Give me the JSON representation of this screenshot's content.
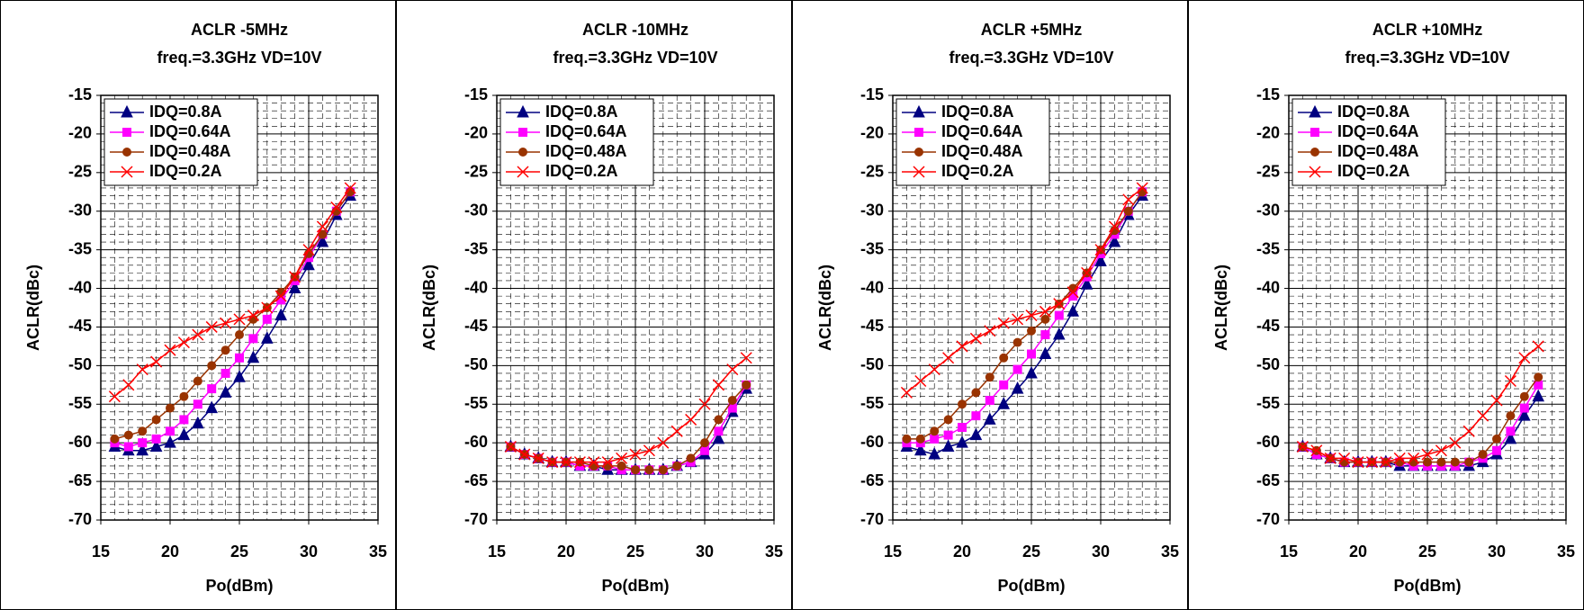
{
  "chart_data": [
    {
      "type": "line",
      "title": "ACLR -5MHz",
      "subtitle": "freq.=3.3GHz  VD=10V",
      "xlabel": "Po(dBm)",
      "ylabel": "ACLR(dBc)",
      "x": [
        16,
        17,
        18,
        19,
        20,
        21,
        22,
        23,
        24,
        25,
        26,
        27,
        28,
        29,
        30,
        31,
        32,
        33
      ],
      "xlim": [
        15,
        35
      ],
      "xticks": [
        15,
        20,
        25,
        30,
        35
      ],
      "ylim": [
        -70,
        -15
      ],
      "yticks": [
        -15,
        -20,
        -25,
        -30,
        -35,
        -40,
        -45,
        -50,
        -55,
        -60,
        -65,
        -70
      ],
      "grid": true,
      "minor_grid": true,
      "legend": "upper left",
      "series": [
        {
          "name": "IDQ=0.8A",
          "color": "#000080",
          "marker": "triangle",
          "values": [
            -60.5,
            -61,
            -61,
            -60.5,
            -60,
            -59,
            -57.5,
            -55.5,
            -53.5,
            -51.5,
            -49,
            -46.5,
            -43.5,
            -40,
            -37,
            -34,
            -30.5,
            -28
          ]
        },
        {
          "name": "IDQ=0.64A",
          "color": "#ff00ff",
          "marker": "square",
          "values": [
            -60,
            -60.5,
            -60,
            -59.5,
            -58.5,
            -57,
            -55,
            -53,
            -51,
            -49,
            -46.5,
            -44,
            -41.5,
            -39,
            -36,
            -33,
            -30,
            -27.5
          ]
        },
        {
          "name": "IDQ=0.48A",
          "color": "#993300",
          "marker": "circle",
          "values": [
            -59.5,
            -59,
            -58.5,
            -57,
            -55.5,
            -54,
            -52,
            -50,
            -48,
            -46,
            -44,
            -42.5,
            -40.5,
            -38.5,
            -35.5,
            -33,
            -30,
            -27.5
          ]
        },
        {
          "name": "IDQ=0.2A",
          "color": "#ff0000",
          "marker": "x",
          "values": [
            -54,
            -52.5,
            -50.5,
            -49.5,
            -48,
            -47,
            -46,
            -45,
            -44.5,
            -44,
            -43.5,
            -42.5,
            -41,
            -38.5,
            -35,
            -32,
            -29.5,
            -27
          ]
        }
      ]
    },
    {
      "type": "line",
      "title": "ACLR -10MHz",
      "subtitle": "freq.=3.3GHz  VD=10V",
      "xlabel": "Po(dBm)",
      "ylabel": "ACLR(dBc)",
      "x": [
        16,
        17,
        18,
        19,
        20,
        21,
        22,
        23,
        24,
        25,
        26,
        27,
        28,
        29,
        30,
        31,
        32,
        33
      ],
      "xlim": [
        15,
        35
      ],
      "xticks": [
        15,
        20,
        25,
        30,
        35
      ],
      "ylim": [
        -70,
        -15
      ],
      "yticks": [
        -15,
        -20,
        -25,
        -30,
        -35,
        -40,
        -45,
        -50,
        -55,
        -60,
        -65,
        -70
      ],
      "grid": true,
      "minor_grid": true,
      "legend": "upper left",
      "series": [
        {
          "name": "IDQ=0.8A",
          "color": "#000080",
          "marker": "triangle",
          "values": [
            -60.5,
            -61.5,
            -62,
            -62.5,
            -62.5,
            -63,
            -63,
            -63.5,
            -63.5,
            -63.5,
            -63.5,
            -63.5,
            -63,
            -62.5,
            -61.5,
            -59.5,
            -56,
            -53
          ]
        },
        {
          "name": "IDQ=0.64A",
          "color": "#ff00ff",
          "marker": "square",
          "values": [
            -60.5,
            -61.5,
            -62,
            -62.5,
            -62.5,
            -63,
            -63,
            -63,
            -63.5,
            -63.5,
            -63.5,
            -63.5,
            -63,
            -62.5,
            -61,
            -58.5,
            -55.5,
            -52.5
          ]
        },
        {
          "name": "IDQ=0.48A",
          "color": "#993300",
          "marker": "circle",
          "values": [
            -60.5,
            -61.5,
            -62,
            -62.5,
            -62.5,
            -62.5,
            -63,
            -63,
            -63,
            -63.5,
            -63.5,
            -63.5,
            -63,
            -62,
            -60,
            -57,
            -54.5,
            -52.5
          ]
        },
        {
          "name": "IDQ=0.2A",
          "color": "#ff0000",
          "marker": "x",
          "values": [
            -60.5,
            -61.5,
            -62,
            -62.5,
            -62.5,
            -62.5,
            -62.5,
            -62.5,
            -62,
            -61.5,
            -61,
            -60,
            -58.5,
            -57,
            -55,
            -52.5,
            -50.5,
            -49
          ]
        }
      ]
    },
    {
      "type": "line",
      "title": "ACLR +5MHz",
      "subtitle": "freq.=3.3GHz  VD=10V",
      "xlabel": "Po(dBm)",
      "ylabel": "ACLR(dBc)",
      "x": [
        16,
        17,
        18,
        19,
        20,
        21,
        22,
        23,
        24,
        25,
        26,
        27,
        28,
        29,
        30,
        31,
        32,
        33
      ],
      "xlim": [
        15,
        35
      ],
      "xticks": [
        15,
        20,
        25,
        30,
        35
      ],
      "ylim": [
        -70,
        -15
      ],
      "yticks": [
        -15,
        -20,
        -25,
        -30,
        -35,
        -40,
        -45,
        -50,
        -55,
        -60,
        -65,
        -70
      ],
      "grid": true,
      "minor_grid": true,
      "legend": "upper left",
      "series": [
        {
          "name": "IDQ=0.8A",
          "color": "#000080",
          "marker": "triangle",
          "values": [
            -60.5,
            -61,
            -61.5,
            -60.5,
            -60,
            -59,
            -57,
            -55,
            -53,
            -51,
            -48.5,
            -46,
            -43,
            -39.5,
            -36.5,
            -34,
            -30.5,
            -28
          ]
        },
        {
          "name": "IDQ=0.64A",
          "color": "#ff00ff",
          "marker": "square",
          "values": [
            -60,
            -60,
            -59.5,
            -59,
            -58,
            -56.5,
            -54.5,
            -52.5,
            -50.5,
            -48.5,
            -46,
            -43.5,
            -41,
            -38.5,
            -35.5,
            -33,
            -30,
            -27.5
          ]
        },
        {
          "name": "IDQ=0.48A",
          "color": "#993300",
          "marker": "circle",
          "values": [
            -59.5,
            -59.5,
            -58.5,
            -57,
            -55,
            -53.5,
            -51.5,
            -49,
            -47,
            -45.5,
            -44,
            -42,
            -40,
            -38,
            -35,
            -32.5,
            -30,
            -27.5
          ]
        },
        {
          "name": "IDQ=0.2A",
          "color": "#ff0000",
          "marker": "x",
          "values": [
            -53.5,
            -52,
            -50.5,
            -49,
            -47.5,
            -46.5,
            -45.5,
            -44.5,
            -44,
            -43.5,
            -43,
            -42,
            -40.5,
            -38,
            -35,
            -32,
            -28.5,
            -27
          ]
        }
      ]
    },
    {
      "type": "line",
      "title": "ACLR +10MHz",
      "subtitle": "freq.=3.3GHz  VD=10V",
      "xlabel": "Po(dBm)",
      "ylabel": "ACLR(dBc)",
      "x": [
        16,
        17,
        18,
        19,
        20,
        21,
        22,
        23,
        24,
        25,
        26,
        27,
        28,
        29,
        30,
        31,
        32,
        33
      ],
      "xlim": [
        15,
        35
      ],
      "xticks": [
        15,
        20,
        25,
        30,
        35
      ],
      "ylim": [
        -70,
        -15
      ],
      "yticks": [
        -15,
        -20,
        -25,
        -30,
        -35,
        -40,
        -45,
        -50,
        -55,
        -60,
        -65,
        -70
      ],
      "grid": true,
      "minor_grid": true,
      "legend": "upper left",
      "series": [
        {
          "name": "IDQ=0.8A",
          "color": "#000080",
          "marker": "triangle",
          "values": [
            -60.5,
            -61.5,
            -62,
            -62.5,
            -62.5,
            -62.5,
            -62.5,
            -63,
            -63,
            -63,
            -63,
            -63,
            -63,
            -62.5,
            -61.5,
            -59.5,
            -56.5,
            -54
          ]
        },
        {
          "name": "IDQ=0.64A",
          "color": "#ff00ff",
          "marker": "square",
          "values": [
            -60.5,
            -61.5,
            -62,
            -62.5,
            -62.5,
            -62.5,
            -62.5,
            -62.5,
            -63,
            -63,
            -63,
            -63,
            -62.5,
            -62,
            -61,
            -58.5,
            -55.5,
            -52.5
          ]
        },
        {
          "name": "IDQ=0.48A",
          "color": "#993300",
          "marker": "circle",
          "values": [
            -60.5,
            -61,
            -62,
            -62.5,
            -62.5,
            -62.5,
            -62.5,
            -62.5,
            -62.5,
            -62.5,
            -62.5,
            -62.5,
            -62.5,
            -61.5,
            -59.5,
            -56.5,
            -54,
            -51.5
          ]
        },
        {
          "name": "IDQ=0.2A",
          "color": "#ff0000",
          "marker": "x",
          "values": [
            -60.5,
            -61,
            -62,
            -62,
            -62.5,
            -62.5,
            -62.5,
            -62,
            -62,
            -61.5,
            -61,
            -60,
            -58.5,
            -56.5,
            -54.5,
            -52,
            -49,
            -47.5
          ]
        }
      ]
    }
  ]
}
